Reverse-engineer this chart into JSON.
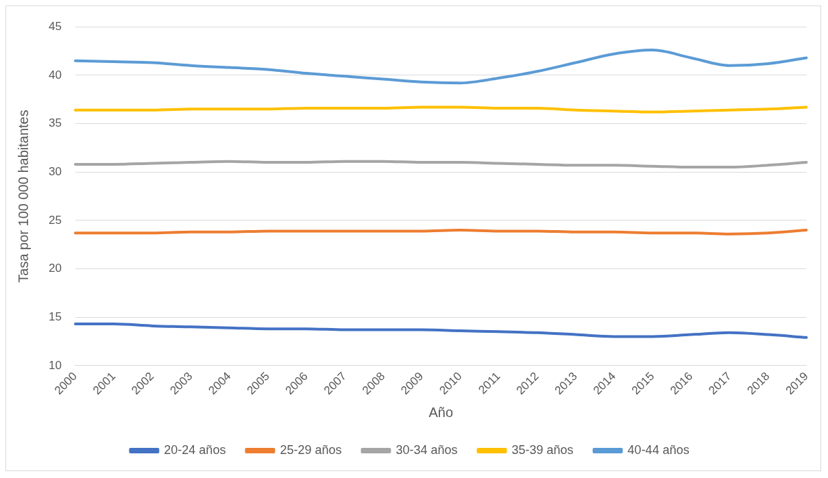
{
  "chart_data": {
    "type": "line",
    "xlabel": "Año",
    "ylabel": "Tasa por 100 000 habitantes",
    "categories": [
      "2000",
      "2001",
      "2002",
      "2003",
      "2004",
      "2005",
      "2006",
      "2007",
      "2008",
      "2009",
      "2010",
      "2011",
      "2012",
      "2013",
      "2014",
      "2015",
      "2016",
      "2017",
      "2018",
      "2019"
    ],
    "series": [
      {
        "name": "20-24 años",
        "color": "#4472c4",
        "values": [
          14.3,
          14.3,
          14.1,
          14.0,
          13.9,
          13.8,
          13.8,
          13.7,
          13.7,
          13.7,
          13.6,
          13.5,
          13.4,
          13.2,
          13.0,
          13.0,
          13.2,
          13.4,
          13.2,
          12.9
        ]
      },
      {
        "name": "25-29 años",
        "color": "#ed7d31",
        "values": [
          23.7,
          23.7,
          23.7,
          23.8,
          23.8,
          23.9,
          23.9,
          23.9,
          23.9,
          23.9,
          24.0,
          23.9,
          23.9,
          23.8,
          23.8,
          23.7,
          23.7,
          23.6,
          23.7,
          24.0
        ]
      },
      {
        "name": "30-34 años",
        "color": "#a5a5a5",
        "values": [
          30.8,
          30.8,
          30.9,
          31.0,
          31.1,
          31.0,
          31.0,
          31.1,
          31.1,
          31.0,
          31.0,
          30.9,
          30.8,
          30.7,
          30.7,
          30.6,
          30.5,
          30.5,
          30.7,
          31.0
        ]
      },
      {
        "name": "35-39 años",
        "color": "#ffc000",
        "values": [
          36.4,
          36.4,
          36.4,
          36.5,
          36.5,
          36.5,
          36.6,
          36.6,
          36.6,
          36.7,
          36.7,
          36.6,
          36.6,
          36.4,
          36.3,
          36.2,
          36.3,
          36.4,
          36.5,
          36.7
        ]
      },
      {
        "name": "40-44 años",
        "color": "#5b9bd5",
        "values": [
          41.5,
          41.4,
          41.3,
          41.0,
          40.8,
          40.6,
          40.2,
          39.9,
          39.6,
          39.3,
          39.2,
          39.7,
          40.4,
          41.3,
          42.2,
          42.6,
          41.8,
          41.0,
          41.2,
          41.8
        ]
      }
    ],
    "ylim": [
      10,
      45
    ],
    "yticks": [
      10,
      15,
      20,
      25,
      30,
      35,
      40,
      45
    ],
    "grid": "y",
    "legend": "bottom",
    "marker": "none",
    "line_style": "solid"
  }
}
